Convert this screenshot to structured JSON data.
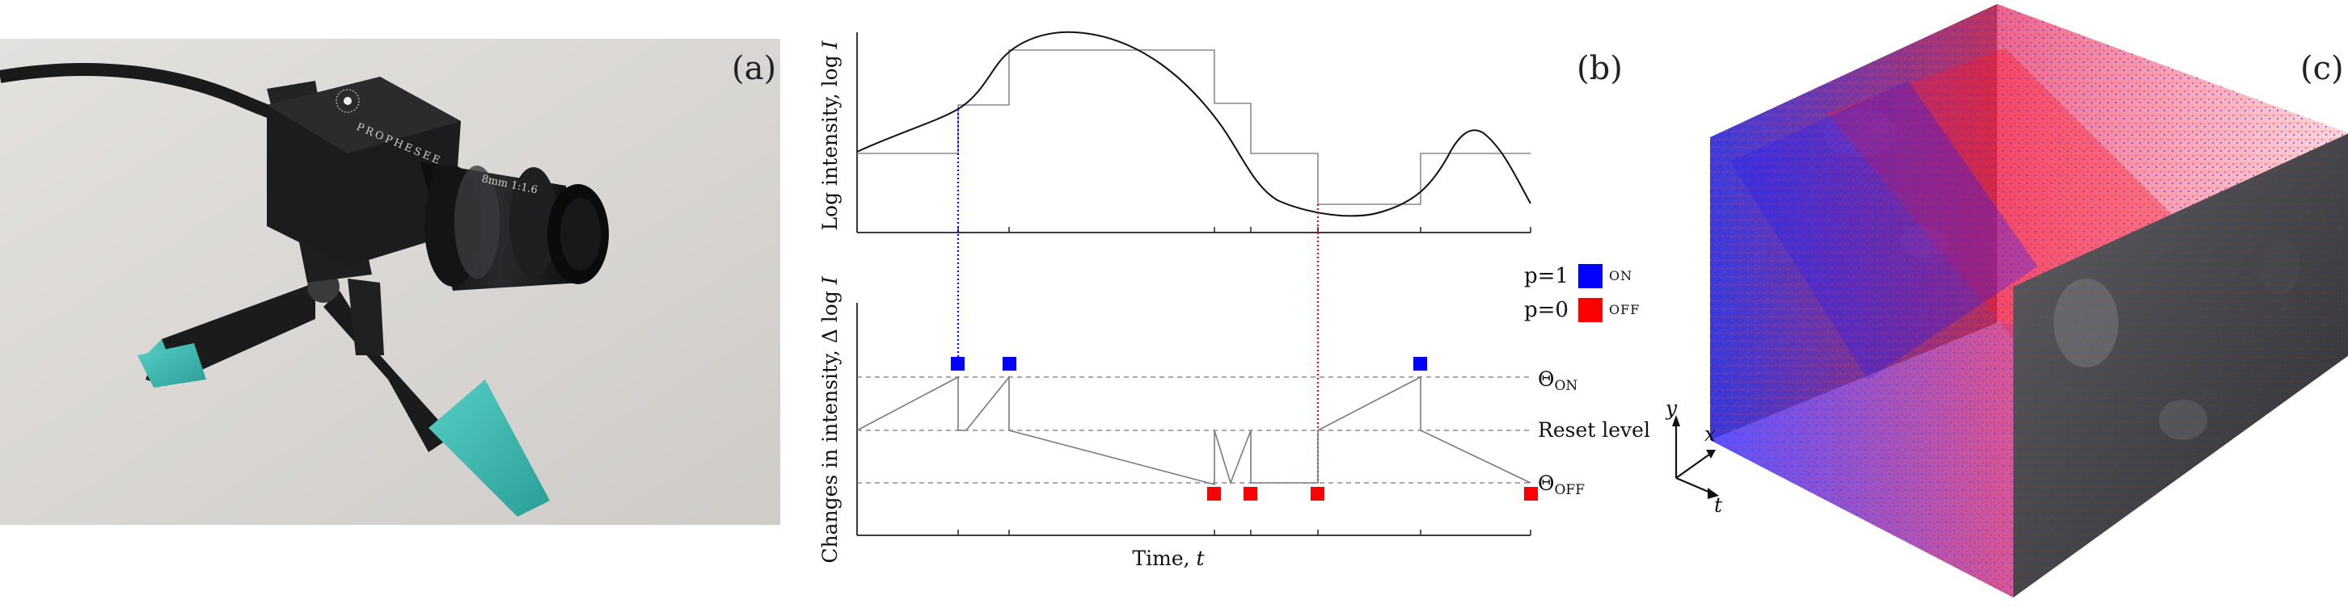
{
  "panel_a": {
    "label": "(a)",
    "camera_brand": "PROPHESEE",
    "lens_text": "8mm 1:1.6",
    "colors": {
      "background": "#d9d7d4",
      "camera_body": "#1c1c1e",
      "tripod_tip": "#3fb8b0"
    }
  },
  "panel_b": {
    "label": "(b)",
    "top_plot": {
      "ylabel": "Log intensity, log ",
      "ylabel_var": "I"
    },
    "bottom_plot": {
      "ylabel": "Changes in intensity, Δ log ",
      "ylabel_var": "I",
      "xlabel": "Time, ",
      "xlabel_var": "t",
      "theta_on": "Θ",
      "theta_on_sub": "ON",
      "reset_level": "Reset level",
      "theta_off": "Θ",
      "theta_off_sub": "OFF"
    },
    "legend": [
      {
        "text": "p=1",
        "tag": "ON",
        "color": "#0000ff"
      },
      {
        "text": "p=0",
        "tag": "OFF",
        "color": "#ff0000"
      }
    ]
  },
  "panel_c": {
    "label": "(c)",
    "axes": {
      "y": "y",
      "x": "x",
      "t": "t"
    },
    "colors": {
      "on_events": "#1a1aff",
      "off_events": "#ff1a2a",
      "frame": "#5a5a5e"
    }
  }
}
